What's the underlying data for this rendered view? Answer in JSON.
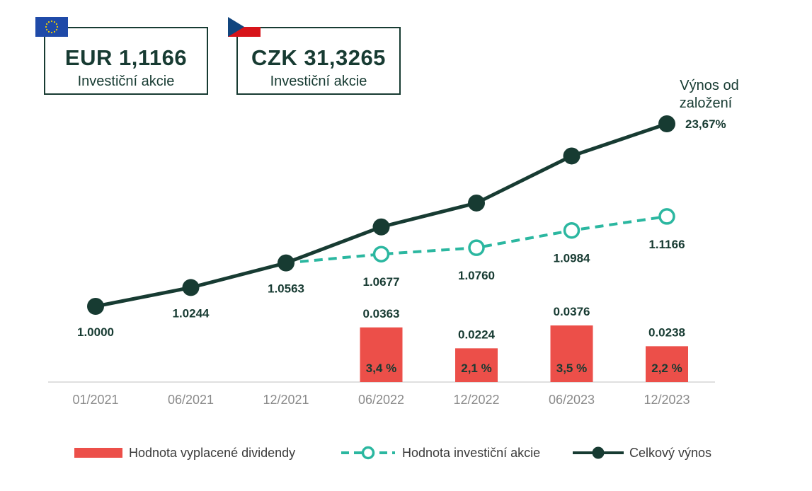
{
  "price_boxes": {
    "eur": {
      "value": "EUR 1,1166",
      "label": "Investiční akcie",
      "flag": "eu-flag"
    },
    "czk": {
      "value": "CZK 31,3265",
      "label": "Investiční akcie",
      "flag": "czech-flag"
    }
  },
  "chart_data": {
    "type": "line",
    "categories": [
      "01/2021",
      "06/2021",
      "12/2021",
      "06/2022",
      "12/2022",
      "06/2023",
      "12/2023"
    ],
    "series": [
      {
        "name": "Celkový výnos",
        "kind": "line-solid",
        "color": "#173b32",
        "values": [
          1.0,
          1.0244,
          1.0563,
          1.103,
          1.134,
          1.195,
          1.2367
        ]
      },
      {
        "name": "Hodnota investiční akcie",
        "kind": "line-dashed",
        "color": "#2bb7a0",
        "values": [
          null,
          null,
          1.0563,
          1.0677,
          1.076,
          1.0984,
          1.1166
        ]
      },
      {
        "name": "Hodnota vyplacené dividendy",
        "kind": "bar",
        "color": "#ec4f49",
        "values": [
          null,
          null,
          null,
          0.0363,
          0.0224,
          0.0376,
          0.0238
        ]
      }
    ],
    "point_labels": {
      "total": [
        "1.0000",
        "1.0244",
        "1.0563",
        "",
        "",
        "",
        ""
      ],
      "share": [
        "",
        "",
        "",
        "1.0677",
        "1.0760",
        "1.0984",
        "1.1166"
      ],
      "dividend": [
        "",
        "",
        "",
        "0.0363",
        "0.0224",
        "0.0376",
        "0.0238"
      ],
      "dividend_pct": [
        "",
        "",
        "",
        "3,4 %",
        "2,1 %",
        "3,5 %",
        "2,2 %"
      ]
    },
    "annotation": {
      "title_line1": "Výnos od",
      "title_line2": "založení",
      "value": "23,67%"
    },
    "legend": {
      "position": "bottom",
      "items": [
        "Hodnota vyplacené dividendy",
        "Hodnota investiční akcie",
        "Celkový výnos"
      ]
    },
    "grid": false
  }
}
